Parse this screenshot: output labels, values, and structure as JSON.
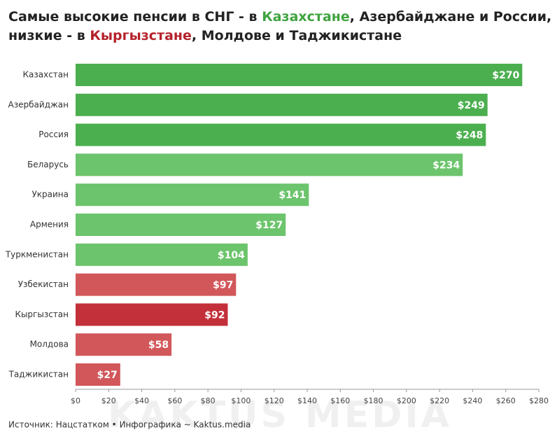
{
  "chart_data": {
    "type": "bar",
    "orientation": "horizontal",
    "title_lines": [
      [
        {
          "text": "Самые высокие пенсии в СНГ - в "
        },
        {
          "text": "Казахстане",
          "color": "#3fa33f"
        },
        {
          "text": ", Азербайджане и России,"
        }
      ],
      [
        {
          "text": "низкие - в "
        },
        {
          "text": "Кыргызстане",
          "color": "#b5222b"
        },
        {
          "text": ", Молдове и Таджикистане"
        }
      ]
    ],
    "categories": [
      "Казахстан",
      "Азербайджан",
      "Россия",
      "Беларусь",
      "Украина",
      "Армения",
      "Туркменистан",
      "Узбекистан",
      "Кыргызстан",
      "Молдова",
      "Таджикистан"
    ],
    "values": [
      270,
      249,
      248,
      234,
      141,
      127,
      104,
      97,
      92,
      58,
      27
    ],
    "value_labels": [
      "$270",
      "$249",
      "$248",
      "$234",
      "$141",
      "$127",
      "$104",
      "$97",
      "$92",
      "$58",
      "$27"
    ],
    "colors": [
      "#4caf4f",
      "#4caf4f",
      "#4caf4f",
      "#6cc46c",
      "#6cc46c",
      "#6cc46c",
      "#6cc46c",
      "#d2575a",
      "#c3303a",
      "#d2575a",
      "#d2575a"
    ],
    "xlim": [
      0,
      280
    ],
    "xticks": [
      {
        "value": 0,
        "label": "$0"
      },
      {
        "value": 20,
        "label": "$20"
      },
      {
        "value": 40,
        "label": "$40"
      },
      {
        "value": 60,
        "label": "$60"
      },
      {
        "value": 80,
        "label": "$80"
      },
      {
        "value": 100,
        "label": "$100"
      },
      {
        "value": 120,
        "label": "$120"
      },
      {
        "value": 140,
        "label": "$140"
      },
      {
        "value": 160,
        "label": "$160"
      },
      {
        "value": 180,
        "label": "$180"
      },
      {
        "value": 200,
        "label": "$200"
      },
      {
        "value": 220,
        "label": "$220"
      },
      {
        "value": 240,
        "label": "$240"
      },
      {
        "value": 260,
        "label": "$260"
      },
      {
        "value": 280,
        "label": "$280"
      }
    ],
    "source": "Источник: Нацстатком • Инфографика ~ Kaktus.media",
    "watermark": "KAKTUS MEDIA"
  }
}
